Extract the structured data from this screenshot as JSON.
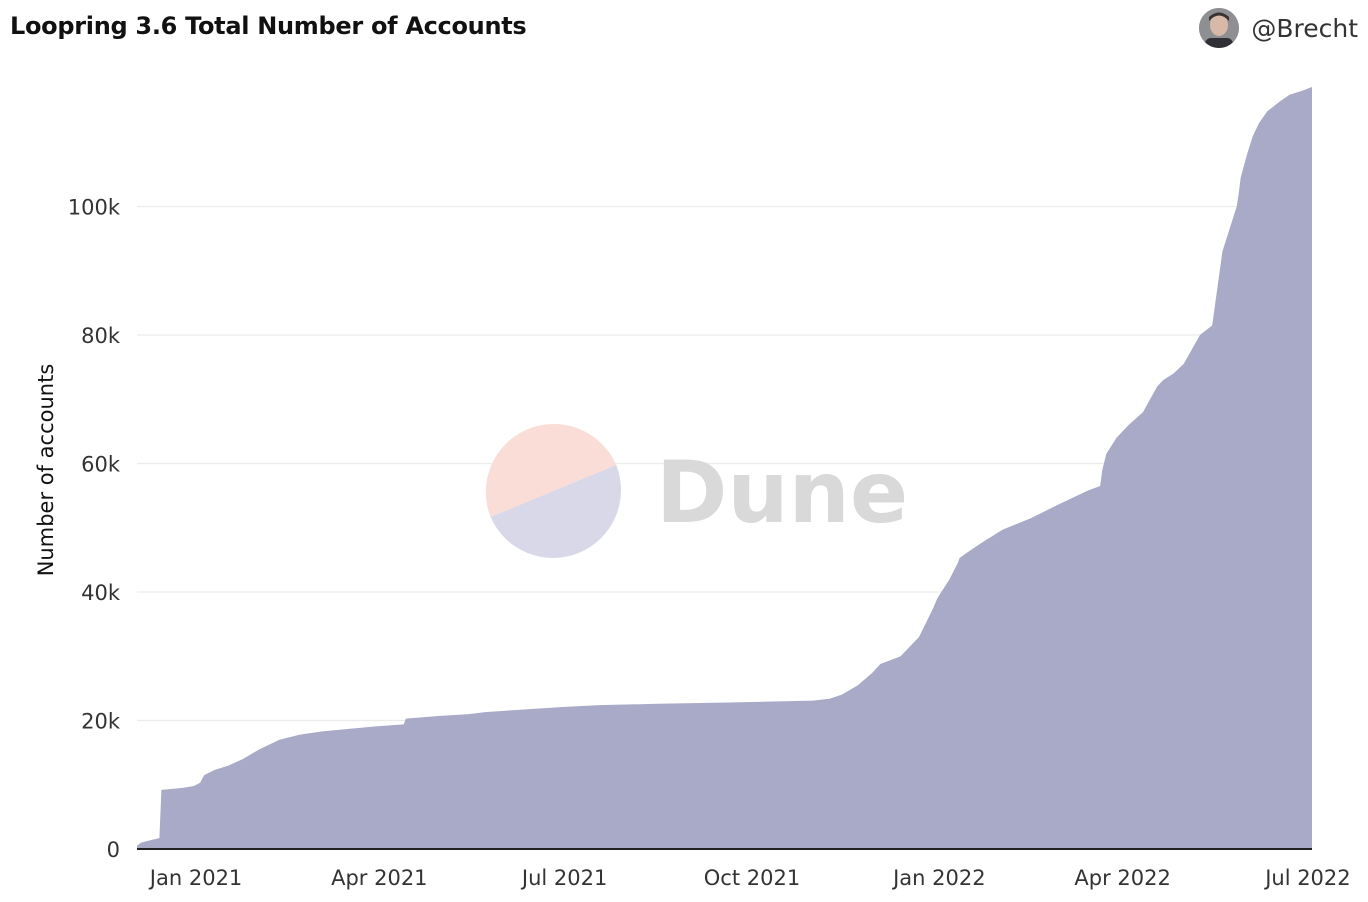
{
  "header": {
    "title": "Loopring 3.6 Total Number of Accounts",
    "author": "@Brecht",
    "avatar_icon": "user-avatar"
  },
  "watermark": {
    "text": "Dune",
    "colors": {
      "top": "#f9ddd6",
      "bottom": "#d8d8e8"
    }
  },
  "chart_data": {
    "type": "area",
    "title": "Loopring 3.6 Total Number of Accounts",
    "xlabel": "",
    "ylabel": "Number of accounts",
    "xlim": [
      "2020-12-03",
      "2022-07-03"
    ],
    "ylim": [
      0,
      120000
    ],
    "yticks": [
      0,
      20000,
      40000,
      60000,
      80000,
      100000
    ],
    "ytick_labels": [
      "0",
      "20k",
      "40k",
      "60k",
      "80k",
      "100k"
    ],
    "xticks": [
      "2021-01-01",
      "2021-04-01",
      "2021-07-01",
      "2021-10-01",
      "2022-01-01",
      "2022-04-01",
      "2022-07-01"
    ],
    "xtick_labels": [
      "Jan 2021",
      "Apr 2021",
      "Jul 2021",
      "Oct 2021",
      "Jan 2022",
      "Apr 2022",
      "Jul 2022"
    ],
    "grid": true,
    "fill_color": "#a9a9c8",
    "series": [
      {
        "name": "",
        "x": [
          "2020-12-03",
          "2020-12-05",
          "2020-12-10",
          "2020-12-14",
          "2020-12-15",
          "2020-12-25",
          "2020-12-31",
          "2021-01-03",
          "2021-01-05",
          "2021-01-10",
          "2021-01-17",
          "2021-01-24",
          "2021-02-01",
          "2021-02-11",
          "2021-02-21",
          "2021-03-04",
          "2021-03-17",
          "2021-03-31",
          "2021-04-13",
          "2021-04-14",
          "2021-04-30",
          "2021-05-15",
          "2021-05-23",
          "2021-06-10",
          "2021-06-30",
          "2021-07-18",
          "2021-08-16",
          "2021-09-20",
          "2021-10-31",
          "2021-11-08",
          "2021-11-14",
          "2021-11-22",
          "2021-11-29",
          "2021-12-03",
          "2021-12-13",
          "2021-12-19",
          "2021-12-22",
          "2021-12-29",
          "2021-12-31",
          "2022-01-03",
          "2022-01-06",
          "2022-01-10",
          "2022-01-11",
          "2022-01-14",
          "2022-01-21",
          "2022-02-01",
          "2022-02-15",
          "2022-03-01",
          "2022-03-15",
          "2022-03-21",
          "2022-03-22",
          "2022-03-24",
          "2022-03-29",
          "2022-04-04",
          "2022-04-11",
          "2022-04-18",
          "2022-04-21",
          "2022-04-26",
          "2022-05-01",
          "2022-05-09",
          "2022-05-15",
          "2022-05-20",
          "2022-05-27",
          "2022-05-28",
          "2022-05-29",
          "2022-06-01",
          "2022-06-04",
          "2022-06-07",
          "2022-06-11",
          "2022-06-17",
          "2022-06-22",
          "2022-06-28",
          "2022-07-03"
        ],
        "values": [
          500,
          1000,
          1400,
          1700,
          9200,
          9500,
          9800,
          10300,
          11500,
          12300,
          13000,
          14000,
          15500,
          17000,
          17800,
          18300,
          18700,
          19100,
          19400,
          20300,
          20700,
          21000,
          21300,
          21700,
          22100,
          22400,
          22600,
          22800,
          23100,
          23400,
          24000,
          25500,
          27400,
          28800,
          30000,
          32000,
          33000,
          37500,
          39000,
          40500,
          42000,
          44500,
          45300,
          46000,
          47500,
          49700,
          51500,
          53700,
          55800,
          56500,
          59000,
          61500,
          64000,
          66000,
          68000,
          72000,
          73000,
          74000,
          75500,
          80000,
          81500,
          93000,
          100000,
          102000,
          104500,
          108000,
          111000,
          113000,
          114800,
          116300,
          117400,
          118000,
          118600
        ]
      }
    ]
  }
}
